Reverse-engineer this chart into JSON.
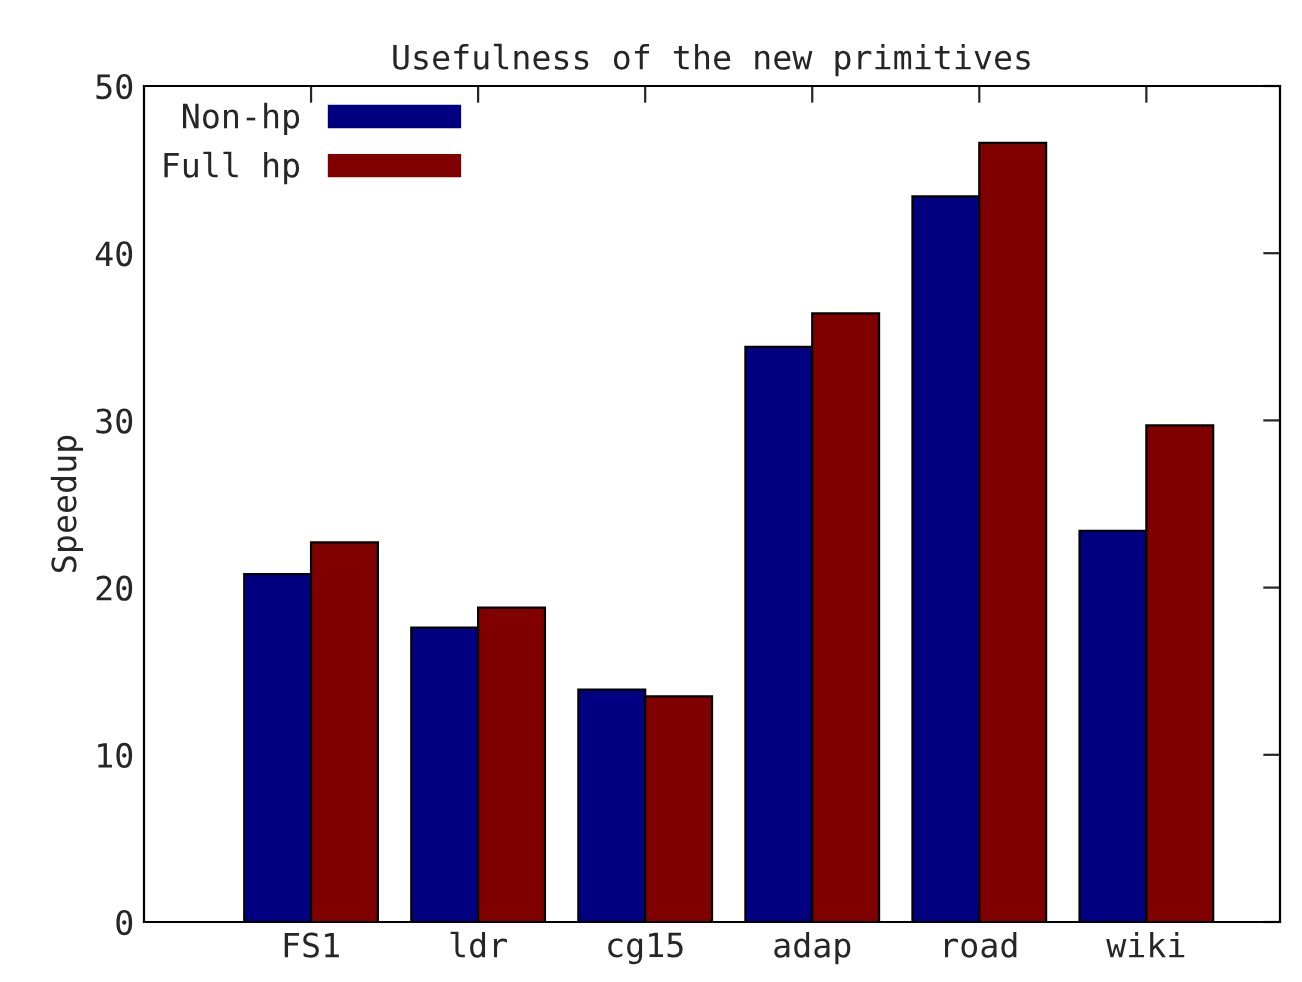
{
  "chart_data": {
    "type": "bar",
    "title": "Usefulness of the new primitives",
    "ylabel": "Speedup",
    "categories": [
      "FS1",
      "ldr",
      "cg15",
      "adap",
      "road",
      "wiki"
    ],
    "series": [
      {
        "name": "Non-hp",
        "color": "#000080",
        "values": [
          20.8,
          17.6,
          13.9,
          34.4,
          43.4,
          23.4
        ]
      },
      {
        "name": "Full hp",
        "color": "#800000",
        "values": [
          22.7,
          18.8,
          13.5,
          36.4,
          46.6,
          29.7
        ]
      }
    ],
    "ylim": [
      0,
      50
    ],
    "yticks": [
      0,
      10,
      20,
      30,
      40,
      50
    ],
    "grid": false,
    "legend": "top left"
  }
}
